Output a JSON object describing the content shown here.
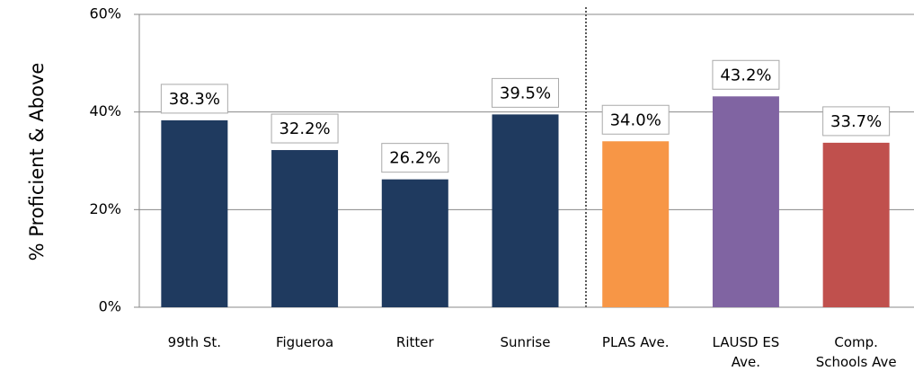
{
  "chart_data": {
    "type": "bar",
    "y_label": "% Proficient & Above",
    "categories": [
      "99th St.",
      "Figueroa",
      "Ritter",
      "Sunrise",
      "PLAS Ave.",
      "LAUSD ES Ave.",
      "Comp. Schools Ave"
    ],
    "values": [
      38.3,
      32.2,
      26.2,
      39.5,
      34.0,
      43.2,
      33.7
    ],
    "value_labels": [
      "38.3%",
      "32.2%",
      "26.2%",
      "39.5%",
      "34.0%",
      "43.2%",
      "33.7%"
    ],
    "colors": [
      "#1f3a5f",
      "#1f3a5f",
      "#1f3a5f",
      "#1f3a5f",
      "#f79646",
      "#8064a2",
      "#c0504d"
    ],
    "ylim": [
      0,
      60
    ],
    "yticks": [
      {
        "value": 0,
        "label": "0%"
      },
      {
        "value": 20,
        "label": "20%"
      },
      {
        "value": 40,
        "label": "40%"
      },
      {
        "value": 60,
        "label": "60%"
      }
    ],
    "grid": true
  }
}
